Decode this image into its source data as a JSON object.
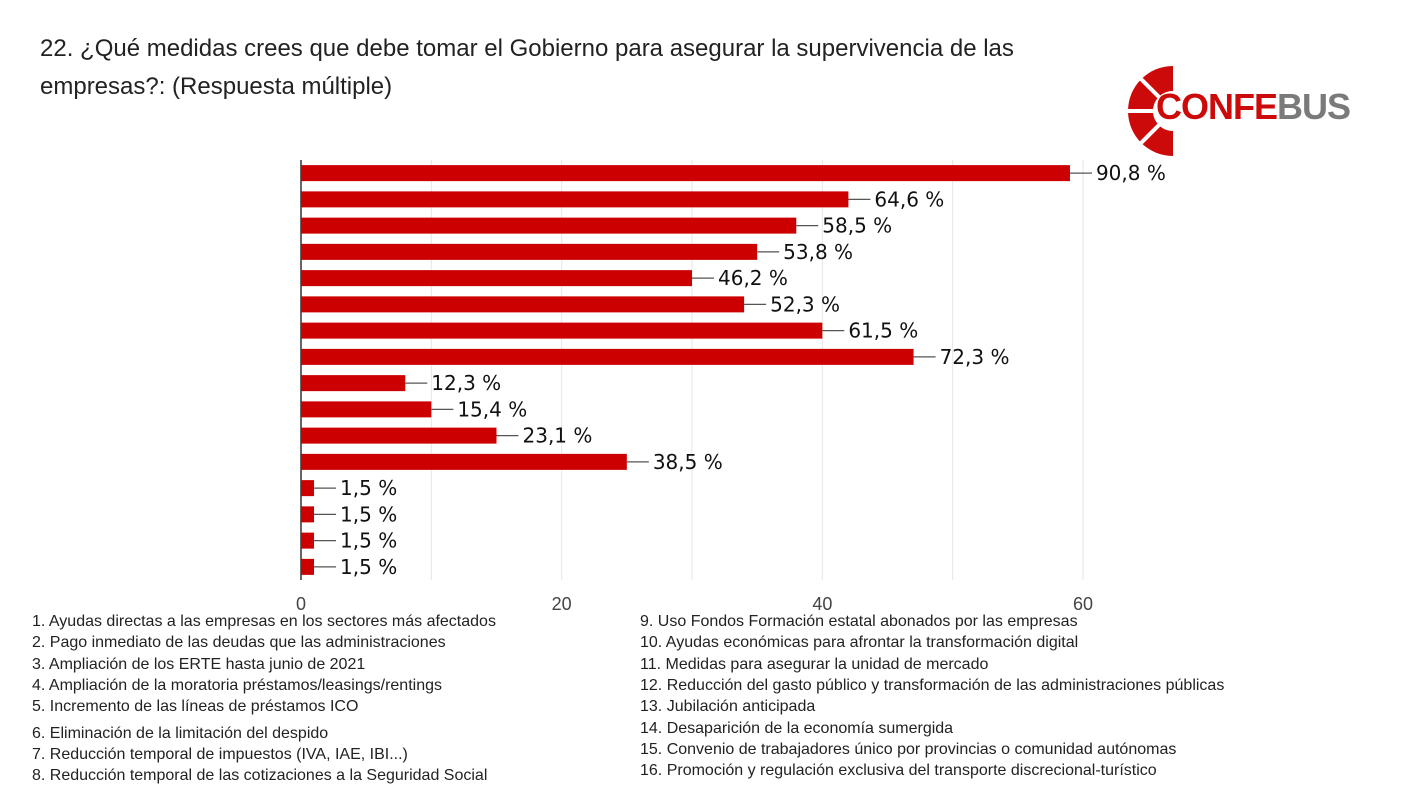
{
  "title": "22. ¿Qué medidas crees que debe tomar el Gobierno para asegurar la supervivencia de las empresas?: (Respuesta múltiple)",
  "logo": {
    "part1": "CONFE",
    "part2": "BUS",
    "colors": {
      "red": "#cc0a0a",
      "gray": "#7a7a7a"
    }
  },
  "chart_data": {
    "type": "bar",
    "orientation": "horizontal",
    "categories": [
      "1",
      "2",
      "3",
      "4",
      "5",
      "6",
      "7",
      "8",
      "9",
      "10",
      "11",
      "12",
      "13",
      "14",
      "15",
      "16"
    ],
    "values": [
      59,
      42,
      38,
      35,
      30,
      34,
      40,
      47,
      8,
      10,
      15,
      25,
      1,
      1,
      1,
      1
    ],
    "data_labels": [
      "90,8 %",
      "64,6 %",
      "58,5 %",
      "53,8 %",
      "46,2 %",
      "52,3 %",
      "61,5 %",
      "72,3 %",
      "12,3 %",
      "15,4 %",
      "23,1 %",
      "38,5 %",
      "1,5 %",
      "1,5 %",
      "1,5 %",
      "1,5 %"
    ],
    "xlim": [
      0,
      60
    ],
    "xticks": [
      "0",
      "20",
      "40",
      "60"
    ],
    "bar_color": "#cc0000",
    "grid": true
  },
  "legend": {
    "left": [
      "1. Ayudas directas a las empresas en los sectores más afectados",
      "2. Pago inmediato de las deudas que las administraciones",
      "3. Ampliación de los ERTE hasta junio de 2021",
      "4. Ampliación de la moratoria préstamos/leasings/rentings",
      "5. Incremento de las líneas de préstamos ICO",
      "6. Eliminación de la limitación del despido",
      "7. Reducción temporal de impuestos (IVA, IAE, IBI...)",
      "8. Reducción temporal de las cotizaciones a la Seguridad Social"
    ],
    "right": [
      "9. Uso Fondos Formación estatal abonados por las empresas",
      "10. Ayudas económicas para afrontar la transformación digital",
      "11. Medidas para asegurar la unidad de mercado",
      "12. Reducción del gasto público y transformación de las administraciones públicas",
      "13. Jubilación anticipada",
      "14. Desaparición de la economía sumergida",
      "15. Convenio de trabajadores único por provincias o comunidad autónomas",
      "16. Promoción y regulación exclusiva del transporte discrecional-turístico"
    ]
  }
}
